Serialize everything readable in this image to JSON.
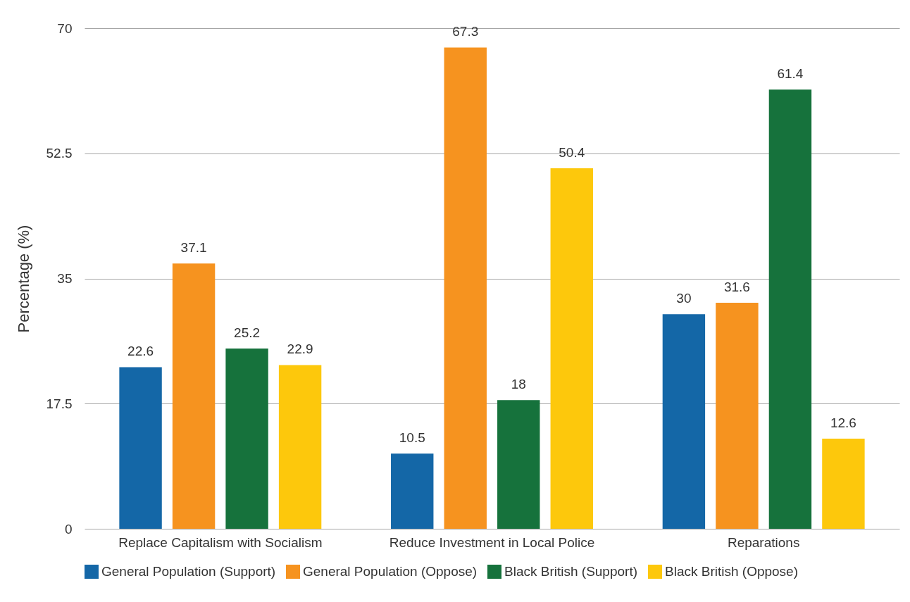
{
  "chart_data": {
    "type": "bar",
    "categories": [
      "Replace Capitalism with Socialism",
      "Reduce Investment in Local Police",
      "Reparations"
    ],
    "series": [
      {
        "name": "General Population (Support)",
        "color": "#1467a7",
        "values": [
          22.6,
          10.5,
          30
        ]
      },
      {
        "name": "General Population (Oppose)",
        "color": "#f6931f",
        "values": [
          37.1,
          67.3,
          31.6
        ]
      },
      {
        "name": "Black British (Support)",
        "color": "#16723c",
        "values": [
          25.2,
          18,
          61.4
        ]
      },
      {
        "name": "Black British (Oppose)",
        "color": "#fdc80c",
        "values": [
          22.9,
          50.4,
          12.6
        ]
      }
    ],
    "ylabel": "Percentage (%)",
    "ylim": [
      0,
      70
    ],
    "yticks": [
      0,
      17.5,
      35,
      52.5,
      70
    ],
    "grid": "y",
    "legend": "bottom",
    "data_labels": true
  }
}
